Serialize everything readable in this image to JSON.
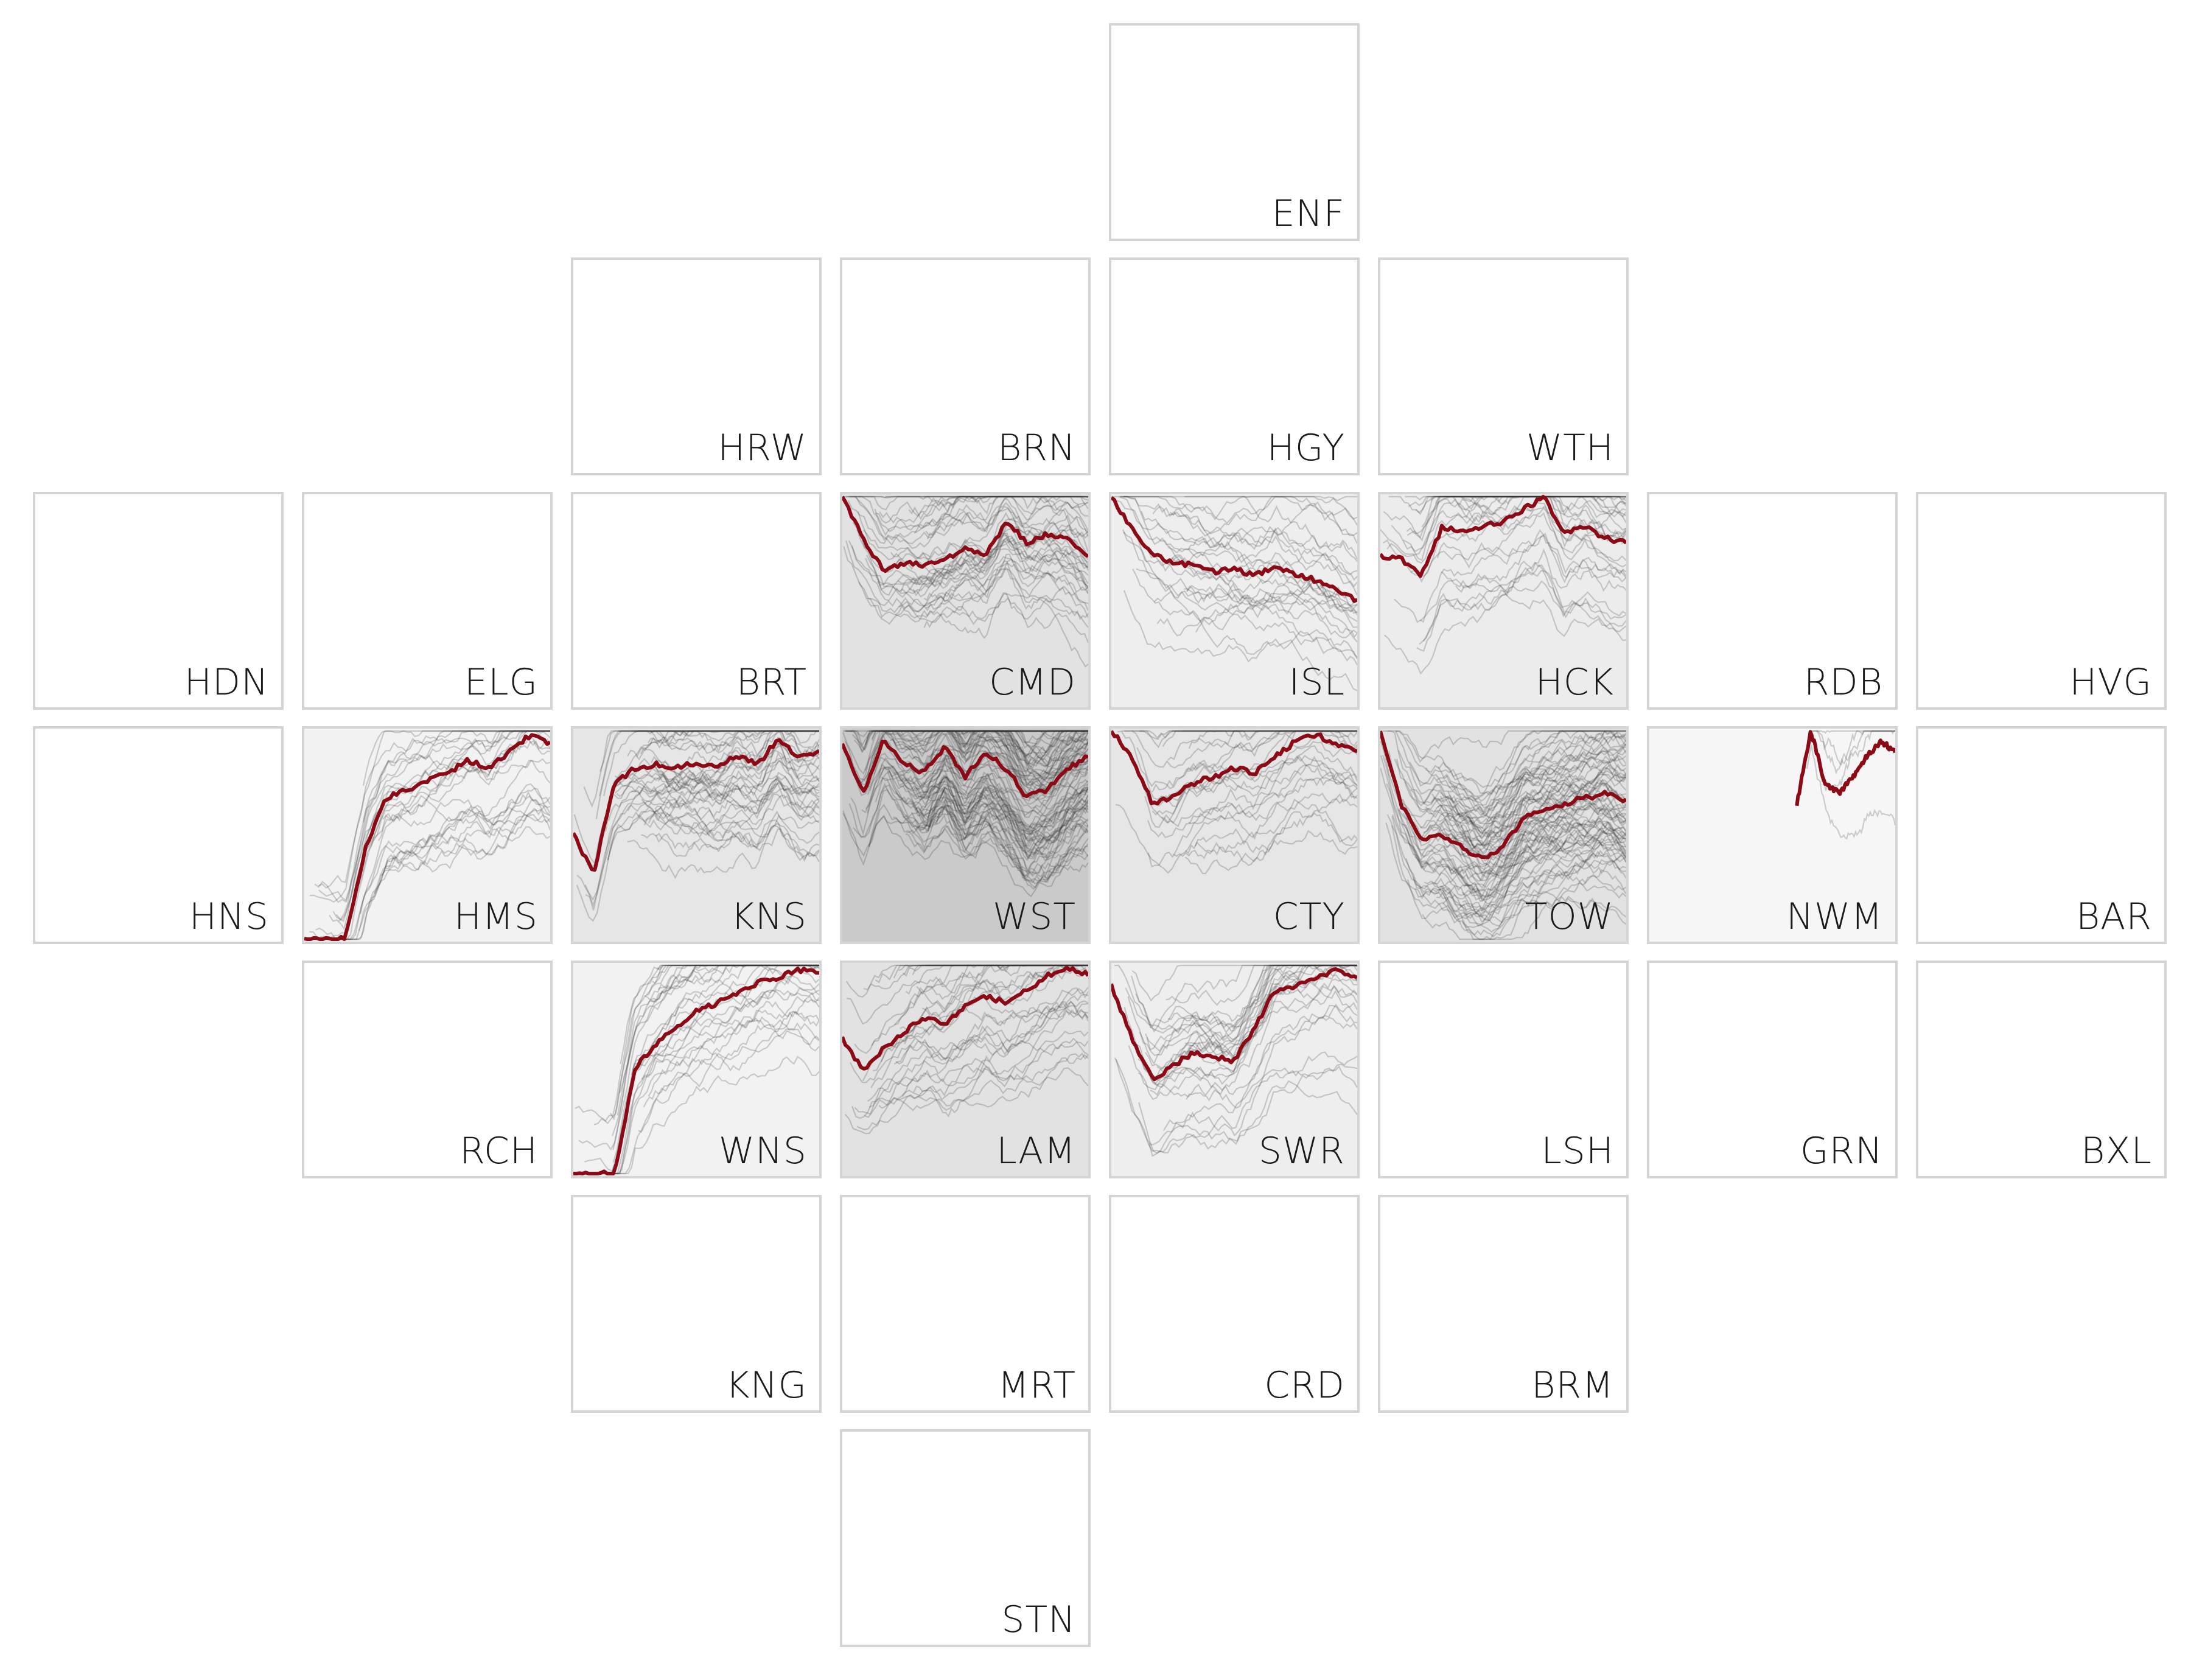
{
  "colors": {
    "highlight": "#8b0a15",
    "background_line": "#333333",
    "tile_border": "#d4d4d4"
  },
  "chart_data": {
    "type": "line",
    "layout": "small-multiples",
    "title": "",
    "grid": false,
    "tiles": [
      {
        "code": "ENF",
        "row": 0,
        "col": 4,
        "has_data": false
      },
      {
        "code": "HRW",
        "row": 1,
        "col": 2,
        "has_data": false
      },
      {
        "code": "BRN",
        "row": 1,
        "col": 3,
        "has_data": false
      },
      {
        "code": "HGY",
        "row": 1,
        "col": 4,
        "has_data": false
      },
      {
        "code": "WTH",
        "row": 1,
        "col": 5,
        "has_data": false
      },
      {
        "code": "HDN",
        "row": 2,
        "col": 0,
        "has_data": false
      },
      {
        "code": "ELG",
        "row": 2,
        "col": 1,
        "has_data": false
      },
      {
        "code": "BRT",
        "row": 2,
        "col": 2,
        "has_data": false
      },
      {
        "code": "CMD",
        "row": 2,
        "col": 3,
        "has_data": true,
        "density": 0.45,
        "bg_level": 0.25,
        "highlight": [
          0.0,
          0.2,
          0.35,
          0.32,
          0.33,
          0.3,
          0.25,
          0.28,
          0.12,
          0.22,
          0.18,
          0.2,
          0.28
        ]
      },
      {
        "code": "ISL",
        "row": 2,
        "col": 4,
        "has_data": true,
        "density": 0.3,
        "bg_level": 0.1,
        "highlight": [
          0.0,
          0.15,
          0.28,
          0.32,
          0.33,
          0.36,
          0.35,
          0.38,
          0.34,
          0.38,
          0.4,
          0.45,
          0.5
        ]
      },
      {
        "code": "HCK",
        "row": 2,
        "col": 5,
        "has_data": true,
        "density": 0.35,
        "bg_level": 0.12,
        "highlight": [
          0.28,
          0.3,
          0.38,
          0.15,
          0.16,
          0.14,
          0.12,
          0.06,
          0.0,
          0.18,
          0.14,
          0.2,
          0.22
        ]
      },
      {
        "code": "RDB",
        "row": 2,
        "col": 6,
        "has_data": false
      },
      {
        "code": "HVG",
        "row": 2,
        "col": 7,
        "has_data": false
      },
      {
        "code": "HNS",
        "row": 3,
        "col": 0,
        "has_data": false
      },
      {
        "code": "HMS",
        "row": 3,
        "col": 1,
        "has_data": true,
        "density": 0.3,
        "bg_level": 0.05,
        "highlight": [
          1.0,
          1.0,
          1.0,
          0.55,
          0.32,
          0.28,
          0.24,
          0.2,
          0.14,
          0.18,
          0.1,
          0.02,
          0.06
        ]
      },
      {
        "code": "KNS",
        "row": 3,
        "col": 2,
        "has_data": true,
        "density": 0.5,
        "bg_level": 0.2,
        "highlight": [
          0.5,
          0.68,
          0.25,
          0.18,
          0.16,
          0.18,
          0.15,
          0.17,
          0.12,
          0.16,
          0.04,
          0.12,
          0.1
        ]
      },
      {
        "code": "WST",
        "row": 3,
        "col": 3,
        "has_data": true,
        "density": 1.0,
        "bg_level": 0.55,
        "highlight": [
          0.05,
          0.3,
          0.05,
          0.15,
          0.2,
          0.08,
          0.22,
          0.1,
          0.18,
          0.32,
          0.28,
          0.18,
          0.12
        ]
      },
      {
        "code": "CTY",
        "row": 3,
        "col": 4,
        "has_data": true,
        "density": 0.3,
        "bg_level": 0.2,
        "highlight": [
          0.0,
          0.12,
          0.35,
          0.32,
          0.25,
          0.22,
          0.18,
          0.2,
          0.12,
          0.05,
          0.02,
          0.06,
          0.1
        ]
      },
      {
        "code": "TOW",
        "row": 3,
        "col": 5,
        "has_data": true,
        "density": 0.85,
        "bg_level": 0.25,
        "highlight": [
          0.0,
          0.35,
          0.52,
          0.5,
          0.56,
          0.62,
          0.55,
          0.42,
          0.38,
          0.35,
          0.32,
          0.3,
          0.34
        ]
      },
      {
        "code": "NWM",
        "row": 3,
        "col": 6,
        "has_data": true,
        "density": 0.05,
        "bg_level": 0.0,
        "start": 0.6,
        "highlight": [
          0.35,
          0.0,
          0.25,
          0.3,
          0.22,
          0.12,
          0.05,
          0.1
        ]
      },
      {
        "code": "BAR",
        "row": 3,
        "col": 7,
        "has_data": false
      },
      {
        "code": "RCH",
        "row": 4,
        "col": 1,
        "has_data": false
      },
      {
        "code": "WNS",
        "row": 4,
        "col": 2,
        "has_data": true,
        "density": 0.35,
        "bg_level": 0.05,
        "highlight": [
          1.0,
          1.0,
          1.0,
          0.5,
          0.38,
          0.3,
          0.22,
          0.18,
          0.14,
          0.08,
          0.06,
          0.02,
          0.04
        ]
      },
      {
        "code": "LAM",
        "row": 4,
        "col": 3,
        "has_data": true,
        "density": 0.4,
        "bg_level": 0.25,
        "highlight": [
          0.35,
          0.5,
          0.4,
          0.32,
          0.25,
          0.28,
          0.2,
          0.15,
          0.18,
          0.12,
          0.05,
          0.02,
          0.04
        ]
      },
      {
        "code": "SWR",
        "row": 4,
        "col": 4,
        "has_data": true,
        "density": 0.35,
        "bg_level": 0.1,
        "highlight": [
          0.1,
          0.35,
          0.55,
          0.48,
          0.42,
          0.44,
          0.46,
          0.3,
          0.12,
          0.1,
          0.06,
          0.02,
          0.06
        ]
      },
      {
        "code": "LSH",
        "row": 4,
        "col": 5,
        "has_data": false
      },
      {
        "code": "GRN",
        "row": 4,
        "col": 6,
        "has_data": false
      },
      {
        "code": "BXL",
        "row": 4,
        "col": 7,
        "has_data": false
      },
      {
        "code": "KNG",
        "row": 5,
        "col": 2,
        "has_data": false
      },
      {
        "code": "MRT",
        "row": 5,
        "col": 3,
        "has_data": false
      },
      {
        "code": "CRD",
        "row": 5,
        "col": 4,
        "has_data": false
      },
      {
        "code": "BRM",
        "row": 5,
        "col": 5,
        "has_data": false
      },
      {
        "code": "STN",
        "row": 6,
        "col": 3,
        "has_data": false
      }
    ]
  }
}
